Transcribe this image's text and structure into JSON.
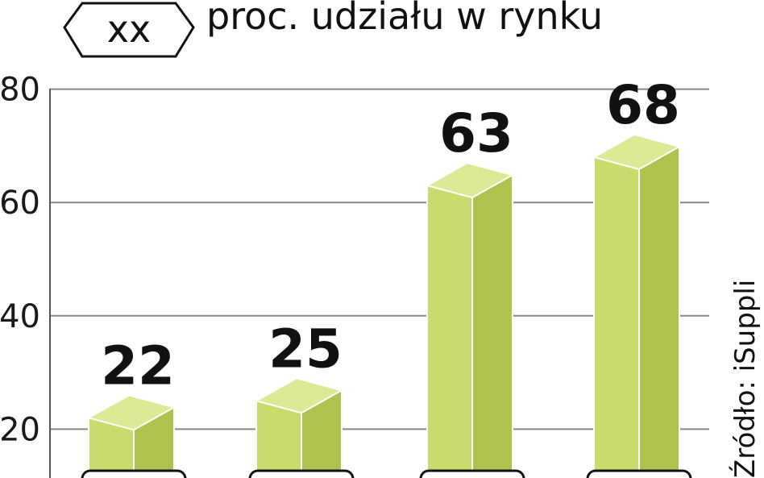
{
  "chart_data": {
    "type": "bar",
    "title": "proc. udziału w rynku",
    "legend_symbol_text": "xx",
    "source": "Źródło: iSuppli",
    "categories": [
      "",
      "",
      "",
      ""
    ],
    "values": [
      22,
      25,
      63,
      68
    ],
    "yticks": [
      20,
      40,
      60,
      80
    ],
    "ylim": [
      0,
      80
    ],
    "grid": true,
    "colors": {
      "bar_front": "#c8dc6e",
      "bar_side": "#b0c24e",
      "bar_top": "#dcea96",
      "grid": "#888888"
    }
  }
}
